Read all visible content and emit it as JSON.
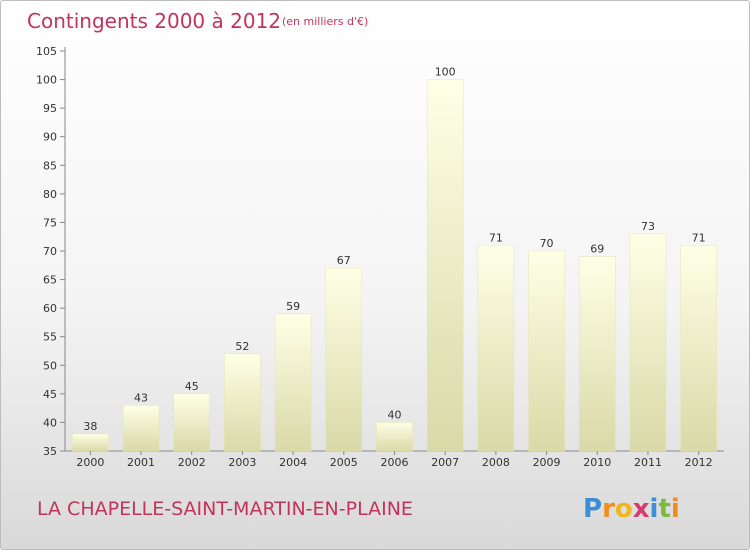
{
  "chart_data": {
    "type": "bar",
    "title": "Contingents 2000 à 2012",
    "subtitle": "(en milliers d'€)",
    "categories": [
      "2000",
      "2001",
      "2002",
      "2003",
      "2004",
      "2005",
      "2006",
      "2007",
      "2008",
      "2009",
      "2010",
      "2011",
      "2012"
    ],
    "values": [
      38,
      43,
      45,
      52,
      59,
      67,
      40,
      100,
      71,
      70,
      69,
      73,
      71
    ],
    "ylim": [
      35,
      105
    ],
    "yticks": [
      35,
      40,
      45,
      50,
      55,
      60,
      65,
      70,
      75,
      80,
      85,
      90,
      95,
      100,
      105
    ],
    "xlabel": "",
    "ylabel": "",
    "grid": false,
    "bar_color": "#f3f3c4",
    "text_color": "#c4335e"
  },
  "commune": "LA CHAPELLE-SAINT-MARTIN-EN-PLAINE",
  "logo": {
    "text": "Proxiti",
    "letters": [
      "P",
      "r",
      "o",
      "x",
      "i",
      "t",
      "i"
    ],
    "colors": [
      "#3a8fd6",
      "#f28c1b",
      "#f2b51b",
      "#d63a6e",
      "#3a8fd6",
      "#7dbb3a",
      "#f28c1b"
    ]
  }
}
